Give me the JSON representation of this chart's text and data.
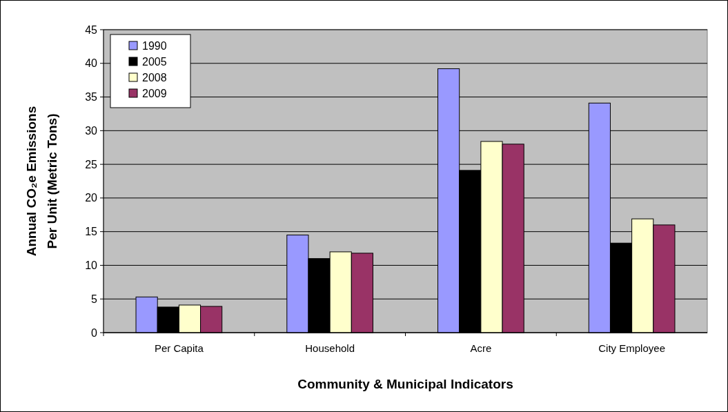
{
  "chart_data": {
    "type": "bar",
    "xlabel": "Community & Municipal Indicators",
    "ylabel": "Annual CO₂e Emissions\nPer Unit (Metric Tons)",
    "categories": [
      "Per Capita",
      "Household",
      "Acre",
      "City Employee"
    ],
    "series": [
      {
        "name": "1990",
        "color": "#9999ff",
        "values": [
          5.3,
          14.5,
          39.2,
          34.1
        ]
      },
      {
        "name": "2005",
        "color": "#000000",
        "values": [
          3.8,
          11.0,
          24.1,
          13.3
        ]
      },
      {
        "name": "2008",
        "color": "#ffffcc",
        "values": [
          4.1,
          12.0,
          28.4,
          16.9
        ]
      },
      {
        "name": "2009",
        "color": "#993366",
        "values": [
          3.9,
          11.8,
          28.0,
          16.0
        ]
      }
    ],
    "ylim": [
      0,
      45
    ],
    "yticks": [
      0,
      5,
      10,
      15,
      20,
      25,
      30,
      35,
      40,
      45
    ],
    "grid": "y",
    "legend": "top left"
  }
}
